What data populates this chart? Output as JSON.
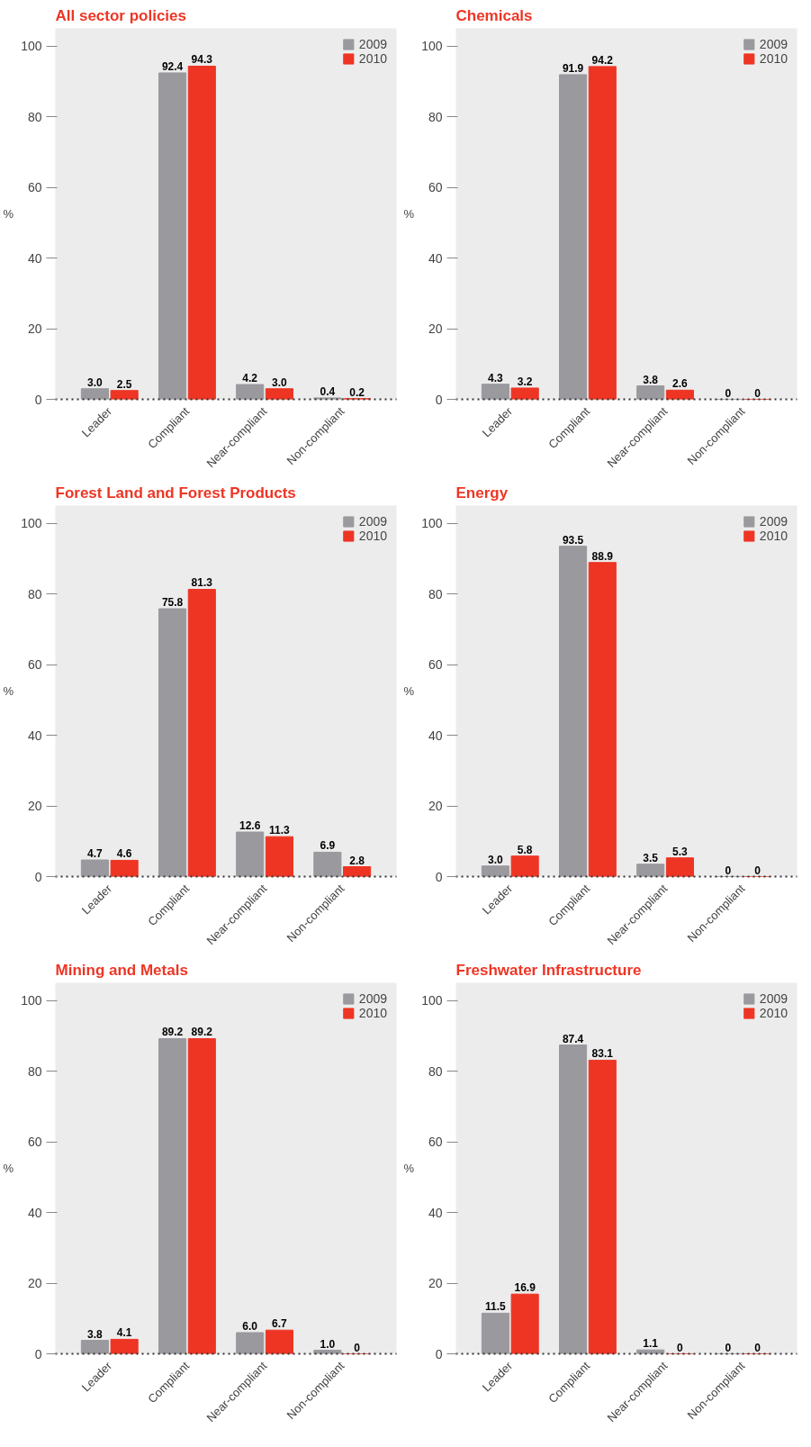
{
  "chart_data": [
    {
      "type": "bar",
      "title": "All sector policies",
      "ylabel": "%",
      "categories": [
        "Leader",
        "Compliant",
        "Near-compliant",
        "Non-compliant"
      ],
      "series": [
        {
          "name": "2009",
          "color": "#9a999e",
          "values": [
            3.0,
            92.4,
            4.2,
            0.4
          ],
          "value_labels": [
            "3.0",
            "92.4",
            "4.2",
            "0.4"
          ]
        },
        {
          "name": "2010",
          "color": "#ee3524",
          "values": [
            2.5,
            94.3,
            3.0,
            0.2
          ],
          "value_labels": [
            "2.5",
            "94.3",
            "3.0",
            "0.2"
          ]
        }
      ],
      "ylim": [
        0,
        105
      ],
      "yticks": [
        0,
        20,
        40,
        60,
        80,
        100
      ],
      "legend": "top right"
    },
    {
      "type": "bar",
      "title": "Chemicals",
      "ylabel": "%",
      "categories": [
        "Leader",
        "Compliant",
        "Near-compliant",
        "Non-compliant"
      ],
      "series": [
        {
          "name": "2009",
          "color": "#9a999e",
          "values": [
            4.3,
            91.9,
            3.8,
            0
          ],
          "value_labels": [
            "4.3",
            "91.9",
            "3.8",
            "0"
          ]
        },
        {
          "name": "2010",
          "color": "#ee3524",
          "values": [
            3.2,
            94.2,
            2.6,
            0
          ],
          "value_labels": [
            "3.2",
            "94.2",
            "2.6",
            "0"
          ]
        }
      ],
      "ylim": [
        0,
        105
      ],
      "yticks": [
        0,
        20,
        40,
        60,
        80,
        100
      ],
      "legend": "top right"
    },
    {
      "type": "bar",
      "title": "Forest Land and Forest Products",
      "ylabel": "%",
      "categories": [
        "Leader",
        "Compliant",
        "Near-compliant",
        "Non-compliant"
      ],
      "series": [
        {
          "name": "2009",
          "color": "#9a999e",
          "values": [
            4.7,
            75.8,
            12.6,
            6.9
          ],
          "value_labels": [
            "4.7",
            "75.8",
            "12.6",
            "6.9"
          ]
        },
        {
          "name": "2010",
          "color": "#ee3524",
          "values": [
            4.6,
            81.3,
            11.3,
            2.8
          ],
          "value_labels": [
            "4.6",
            "81.3",
            "11.3",
            "2.8"
          ]
        }
      ],
      "ylim": [
        0,
        105
      ],
      "yticks": [
        0,
        20,
        40,
        60,
        80,
        100
      ],
      "legend": "top right"
    },
    {
      "type": "bar",
      "title": "Energy",
      "ylabel": "%",
      "categories": [
        "Leader",
        "Compliant",
        "Near-compliant",
        "Non-compliant"
      ],
      "series": [
        {
          "name": "2009",
          "color": "#9a999e",
          "values": [
            3.0,
            93.5,
            3.5,
            0
          ],
          "value_labels": [
            "3.0",
            "93.5",
            "3.5",
            "0"
          ]
        },
        {
          "name": "2010",
          "color": "#ee3524",
          "values": [
            5.8,
            88.9,
            5.3,
            0
          ],
          "value_labels": [
            "5.8",
            "88.9",
            "5.3",
            "0"
          ]
        }
      ],
      "ylim": [
        0,
        105
      ],
      "yticks": [
        0,
        20,
        40,
        60,
        80,
        100
      ],
      "legend": "top right"
    },
    {
      "type": "bar",
      "title": "Mining and Metals",
      "ylabel": "%",
      "categories": [
        "Leader",
        "Compliant",
        "Near-compliant",
        "Non-compliant"
      ],
      "series": [
        {
          "name": "2009",
          "color": "#9a999e",
          "values": [
            3.8,
            89.2,
            6.0,
            1.0
          ],
          "value_labels": [
            "3.8",
            "89.2",
            "6.0",
            "1.0"
          ]
        },
        {
          "name": "2010",
          "color": "#ee3524",
          "values": [
            4.1,
            89.2,
            6.7,
            0
          ],
          "value_labels": [
            "4.1",
            "89.2",
            "6.7",
            "0"
          ]
        }
      ],
      "ylim": [
        0,
        105
      ],
      "yticks": [
        0,
        20,
        40,
        60,
        80,
        100
      ],
      "legend": "top right"
    },
    {
      "type": "bar",
      "title": "Freshwater Infrastructure",
      "ylabel": "%",
      "categories": [
        "Leader",
        "Compliant",
        "Near-compliant",
        "Non-compliant"
      ],
      "series": [
        {
          "name": "2009",
          "color": "#9a999e",
          "values": [
            11.5,
            87.4,
            1.1,
            0
          ],
          "value_labels": [
            "11.5",
            "87.4",
            "1.1",
            "0"
          ]
        },
        {
          "name": "2010",
          "color": "#ee3524",
          "values": [
            16.9,
            83.1,
            0,
            0
          ],
          "value_labels": [
            "16.9",
            "83.1",
            "0",
            "0"
          ]
        }
      ],
      "ylim": [
        0,
        105
      ],
      "yticks": [
        0,
        20,
        40,
        60,
        80,
        100
      ],
      "legend": "top right"
    }
  ]
}
